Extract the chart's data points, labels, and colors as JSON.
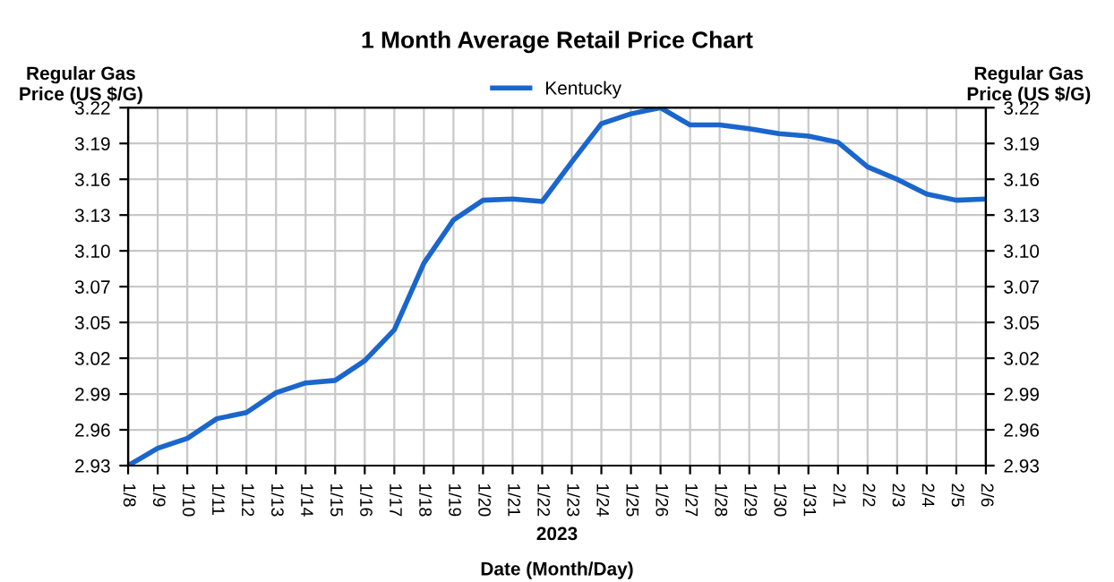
{
  "chart_data": {
    "type": "line",
    "title": "1 Month Average Retail Price Chart",
    "ylabel": "Regular Gas\nPrice (US $/G)",
    "y2label": "Regular Gas\nPrice (US $/G)",
    "xlabel": "Date (Month/Day)",
    "annotations": [
      "2023"
    ],
    "categories": [
      "1/8",
      "1/9",
      "1/10",
      "1/11",
      "1/12",
      "1/13",
      "1/14",
      "1/15",
      "1/16",
      "1/17",
      "1/18",
      "1/19",
      "1/20",
      "1/21",
      "1/22",
      "1/23",
      "1/24",
      "1/25",
      "1/26",
      "1/27",
      "1/28",
      "1/29",
      "1/30",
      "1/31",
      "2/1",
      "2/2",
      "2/3",
      "2/4",
      "2/5",
      "2/6"
    ],
    "series": [
      {
        "name": "Kentucky",
        "color": "#1a66cc",
        "values": [
          2.93,
          2.944,
          2.952,
          2.968,
          2.973,
          2.989,
          2.997,
          2.999,
          3.015,
          3.04,
          3.094,
          3.129,
          3.145,
          3.146,
          3.144,
          3.176,
          3.207,
          3.215,
          3.22,
          3.206,
          3.206,
          3.203,
          3.199,
          3.197,
          3.192,
          3.172,
          3.162,
          3.15,
          3.145,
          3.146
        ]
      }
    ],
    "ylim": [
      2.93,
      3.22
    ],
    "yticks": [
      {
        "value": 2.93,
        "label": "2.93"
      },
      {
        "value": 2.959,
        "label": "2.96"
      },
      {
        "value": 2.988,
        "label": "2.99"
      },
      {
        "value": 3.017,
        "label": "3.02"
      },
      {
        "value": 3.046,
        "label": "3.05"
      },
      {
        "value": 3.075,
        "label": "3.07"
      },
      {
        "value": 3.104,
        "label": "3.10"
      },
      {
        "value": 3.133,
        "label": "3.13"
      },
      {
        "value": 3.162,
        "label": "3.16"
      },
      {
        "value": 3.191,
        "label": "3.19"
      },
      {
        "value": 3.22,
        "label": "3.22"
      }
    ],
    "y2lim": [
      2.93,
      3.22
    ],
    "y2ticks": [
      {
        "value": 2.93,
        "label": "2.93"
      },
      {
        "value": 2.959,
        "label": "2.96"
      },
      {
        "value": 2.988,
        "label": "2.99"
      },
      {
        "value": 3.017,
        "label": "3.02"
      },
      {
        "value": 3.046,
        "label": "3.05"
      },
      {
        "value": 3.075,
        "label": "3.07"
      },
      {
        "value": 3.104,
        "label": "3.10"
      },
      {
        "value": 3.133,
        "label": "3.13"
      },
      {
        "value": 3.162,
        "label": "3.16"
      },
      {
        "value": 3.191,
        "label": "3.19"
      },
      {
        "value": 3.22,
        "label": "3.22"
      }
    ],
    "grid": true,
    "legend": "top",
    "marker": "none",
    "line_style": "solid"
  }
}
